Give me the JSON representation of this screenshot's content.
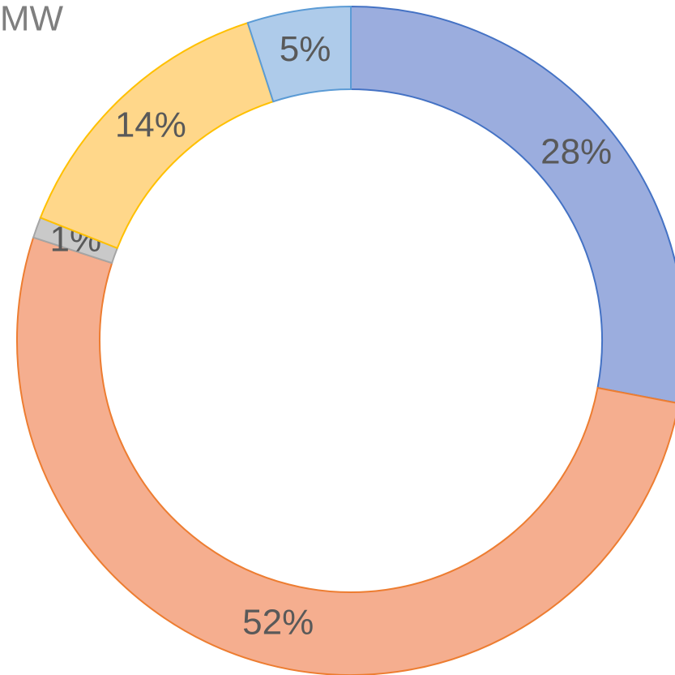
{
  "chart_data": {
    "type": "donut",
    "title": "MW",
    "values": [
      28,
      52,
      1,
      14,
      5
    ],
    "value_labels": [
      "28%",
      "52%",
      "1%",
      "14%",
      "5%"
    ],
    "colors": [
      "#9badde",
      "#f5ae8f",
      "#c9c9c9",
      "#ffd78a",
      "#aecbea"
    ],
    "edge_colors": [
      "#4472c4",
      "#ed7d31",
      "#a5a5a5",
      "#ffc000",
      "#5b9bd5"
    ]
  }
}
